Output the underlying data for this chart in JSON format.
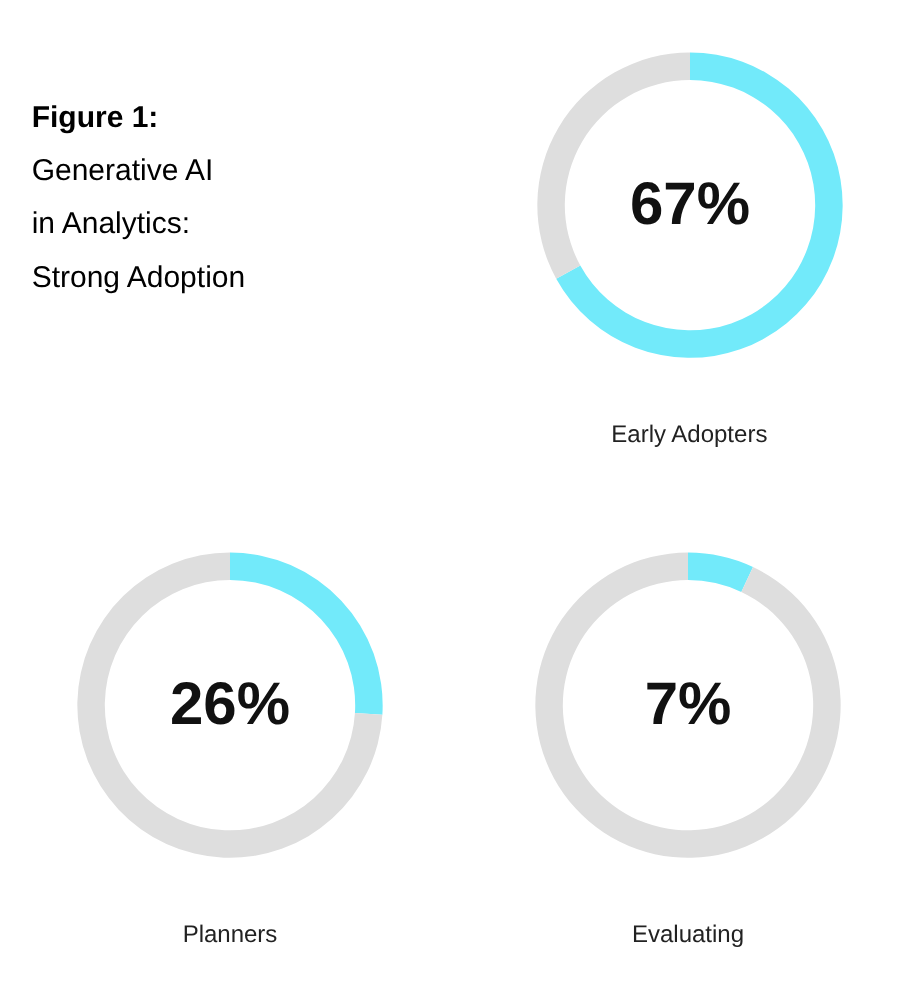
{
  "chart_data": [
    {
      "type": "other",
      "title": "Figure 1:",
      "subtitle": "Generative AI in Analytics: Strong Adoption"
    },
    {
      "type": "donut",
      "categories": [
        null,
        null
      ],
      "values": [
        67,
        33
      ],
      "colors": [
        "#72eafa",
        "#dedede"
      ],
      "annotations": [
        "67%"
      ],
      "xlabel": "Early Adopters"
    },
    {
      "type": "donut",
      "categories": [
        null,
        null
      ],
      "values": [
        26,
        74
      ],
      "colors": [
        "#72eafa",
        "#dedede"
      ],
      "annotations": [
        "26%"
      ],
      "xlabel": "Planners"
    },
    {
      "type": "donut",
      "categories": [
        null,
        null
      ],
      "values": [
        7,
        93
      ],
      "colors": [
        "#72eafa",
        "#dedede"
      ],
      "annotations": [
        "7%"
      ],
      "xlabel": "Evaluating"
    }
  ]
}
